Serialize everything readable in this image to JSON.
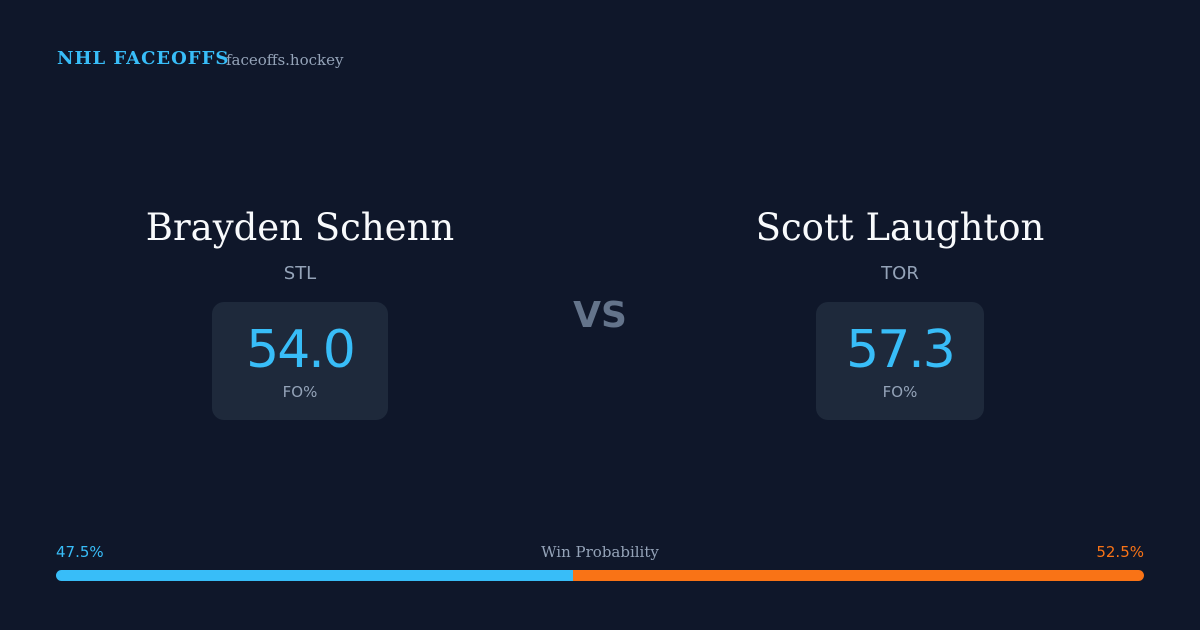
{
  "header": {
    "brand": "NHL FACEOFFS",
    "site": "faceoffs.hockey"
  },
  "players": [
    {
      "name": "Brayden Schenn",
      "team": "STL",
      "stat": "54.0",
      "stat_label": "FO%"
    },
    {
      "name": "Scott Laughton",
      "team": "TOR",
      "stat": "57.3",
      "stat_label": "FO%"
    }
  ],
  "versus": "VS",
  "win_probability": {
    "title": "Win Probability",
    "left": {
      "value": 47.5,
      "label": "47.5%",
      "color": "#38bdf8"
    },
    "right": {
      "value": 52.5,
      "label": "52.5%",
      "color": "#f97316"
    }
  }
}
